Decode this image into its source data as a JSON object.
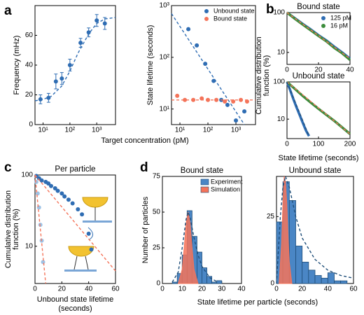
{
  "panels": [
    {
      "label": "a",
      "xlabel": "Target concentration (pM)"
    },
    {
      "label": "b",
      "ylabel": [
        "Cumulative distribution",
        "function (%)"
      ],
      "xlabel": "State lifetime (seconds)"
    },
    {
      "label": "c"
    },
    {
      "label": "d",
      "xlabel": "State lifetime per particle (seconds)"
    }
  ],
  "chart_data": [
    {
      "type": "scatter",
      "xscale": "log",
      "xlim": [
        5,
        5000
      ],
      "xticks": [
        {
          "value": 10,
          "label": "10¹"
        },
        {
          "value": 100,
          "label": "10²"
        },
        {
          "value": 1000,
          "label": "10³"
        }
      ],
      "ylim": [
        0,
        80
      ],
      "yticks": [
        0,
        20,
        40,
        60
      ],
      "ylabel": "Frequency (mHz)",
      "series": [
        {
          "color": "#2f6db3",
          "x": [
            8,
            16,
            30,
            50,
            100,
            250,
            500,
            1000,
            2000
          ],
          "values": [
            17,
            18,
            29,
            31,
            40,
            55,
            62,
            70,
            68
          ],
          "errors": [
            3,
            3,
            5,
            4,
            4,
            3,
            3,
            4,
            4
          ]
        }
      ],
      "fits": [
        {
          "color": "#2f6db3",
          "x": [
            5,
            10,
            20,
            50,
            100,
            200,
            500,
            1000,
            2000,
            5000
          ],
          "values": [
            16,
            17,
            19,
            26,
            36,
            48,
            61,
            68,
            71,
            72
          ]
        }
      ]
    },
    {
      "type": "scatter",
      "xscale": "log",
      "yscale": "log",
      "xlim": [
        5,
        5000
      ],
      "xticks": [
        {
          "value": 10,
          "label": "10¹"
        },
        {
          "value": 100,
          "label": "10²"
        },
        {
          "value": 1000,
          "label": "10³"
        }
      ],
      "ylim": [
        5,
        1000
      ],
      "yticks": [
        {
          "value": 10,
          "label": "10¹"
        },
        {
          "value": 100,
          "label": "10²"
        },
        {
          "value": 1000,
          "label": "10³"
        }
      ],
      "ylabel": "State lifetime (seconds)",
      "legend": "upper right",
      "series": [
        {
          "name": "Unbound state",
          "color": "#2f6db3",
          "x": [
            20,
            40,
            80,
            160,
            300,
            500,
            1000,
            2000
          ],
          "values": [
            350,
            170,
            75,
            35,
            15,
            12,
            6,
            9
          ]
        },
        {
          "name": "Bound state",
          "color": "#f4745a",
          "x": [
            8,
            15,
            30,
            60,
            100,
            200,
            400,
            800,
            1500,
            2500
          ],
          "values": [
            18,
            15,
            15,
            16,
            15,
            15,
            14,
            14,
            15,
            14
          ]
        }
      ],
      "fits": [
        {
          "color": "#2f6db3",
          "x": [
            5,
            2000
          ],
          "values": [
            700,
            5
          ]
        },
        {
          "color": "#f4745a",
          "x": [
            5,
            5000
          ],
          "values": [
            15,
            15
          ]
        }
      ]
    },
    {
      "type": "line",
      "yscale": "log",
      "title": "Bound state",
      "xlim": [
        0,
        40
      ],
      "xticks": [
        0,
        20,
        40
      ],
      "ylim": [
        5,
        100
      ],
      "yticks": [
        10,
        100
      ],
      "legend": "upper right",
      "series": [
        {
          "name": "125 pM",
          "color": "#2f6db3",
          "x": [
            0,
            5,
            10,
            15,
            20,
            25,
            30,
            35,
            40
          ],
          "values": [
            100,
            72,
            52,
            38,
            27,
            20,
            14,
            10,
            7
          ]
        },
        {
          "name": "16 pM",
          "color": "#3c8c3c",
          "x": [
            0,
            5,
            10,
            15,
            20,
            25,
            30,
            35,
            40
          ],
          "values": [
            100,
            70,
            50,
            36,
            26,
            19,
            13,
            9.5,
            6.5
          ]
        }
      ],
      "fits": [
        {
          "color": "#f4745a",
          "x": [
            0,
            40
          ],
          "values": [
            100,
            7
          ]
        }
      ]
    },
    {
      "type": "line",
      "yscale": "log",
      "title": "Unbound state",
      "xlim": [
        0,
        200
      ],
      "xticks": [
        0,
        100,
        200
      ],
      "ylim": [
        3,
        100
      ],
      "yticks": [
        10,
        100
      ],
      "series": [
        {
          "color": "#2f6db3",
          "x": [
            0,
            10,
            20,
            30,
            40,
            50,
            60,
            70
          ],
          "values": [
            100,
            60,
            35,
            21,
            13,
            8,
            5,
            3.5
          ]
        },
        {
          "color": "#3c8c3c",
          "x": [
            0,
            25,
            50,
            75,
            100,
            125,
            150,
            175,
            200
          ],
          "values": [
            100,
            65,
            42,
            28,
            19,
            13,
            9,
            6,
            4
          ]
        }
      ],
      "fits": [
        {
          "color": "#f4745a",
          "x": [
            0,
            200
          ],
          "values": [
            100,
            4
          ]
        },
        {
          "color": "#1f4e79",
          "x": [
            0,
            70
          ],
          "values": [
            100,
            3.5
          ]
        }
      ]
    },
    {
      "type": "scatter",
      "yscale": "log",
      "title": "Per particle",
      "xlim": [
        0,
        60
      ],
      "xticks": [
        0,
        20,
        40,
        60
      ],
      "ylim": [
        3,
        100
      ],
      "yticks": [
        10,
        100
      ],
      "ylabel": [
        "Cumulative distribution",
        "function (%)"
      ],
      "xlabel": [
        "Unbound state lifetime",
        "(seconds)"
      ],
      "series": [
        {
          "color": "#2f6db3",
          "x": [
            1,
            3,
            5,
            8,
            10,
            12,
            15,
            17,
            20,
            22,
            25,
            28,
            32,
            35,
            40,
            42
          ],
          "values": [
            97,
            90,
            84,
            80,
            76,
            70,
            65,
            60,
            55,
            50,
            45,
            40,
            33,
            28,
            15,
            9
          ]
        },
        {
          "color": "#9ec3e6",
          "x": [
            1,
            2,
            3,
            4,
            5,
            6
          ],
          "values": [
            80,
            55,
            35,
            20,
            12,
            6
          ]
        }
      ],
      "fits": [
        {
          "color": "#f4745a",
          "x": [
            0,
            60
          ],
          "values": [
            100,
            4.5
          ]
        },
        {
          "color": "#f4745a",
          "x": [
            0,
            8
          ],
          "values": [
            100,
            3
          ]
        }
      ]
    },
    {
      "type": "histogram",
      "title": "Bound state",
      "xlim": [
        0,
        40
      ],
      "xticks": [
        0,
        10,
        20,
        30,
        40
      ],
      "ylim": [
        0,
        75
      ],
      "yticks": [
        0,
        25,
        50,
        75
      ],
      "ylabel": "Number of particles",
      "legend": "upper right",
      "bins": [
        5,
        7.5,
        10,
        12.5,
        15,
        17.5,
        20,
        22.5,
        25,
        27.5,
        30
      ],
      "experiment": {
        "name": "Experiment",
        "color": "#4a86c5",
        "counts": [
          1,
          7,
          20,
          51,
          33,
          22,
          11,
          5,
          1,
          2
        ]
      },
      "simulation": {
        "name": "Simulation",
        "color": "#f4745a",
        "x": [
          8,
          10,
          11,
          12,
          13,
          14,
          15,
          16,
          18
        ],
        "values": [
          0,
          10,
          25,
          42,
          50,
          42,
          25,
          10,
          0
        ]
      },
      "fits": [
        {
          "color": "#1f4e79",
          "x": [
            5,
            8,
            10,
            12,
            13,
            14,
            16,
            18,
            20,
            24,
            28
          ],
          "values": [
            1,
            8,
            25,
            45,
            50,
            46,
            32,
            20,
            12,
            4,
            1
          ]
        }
      ]
    },
    {
      "type": "histogram",
      "title": "Unbound state",
      "xlim": [
        0,
        60
      ],
      "xticks": [
        0,
        20,
        40,
        60
      ],
      "ylim": [
        0,
        40
      ],
      "yticks": [
        0,
        25
      ],
      "bins": [
        0,
        5,
        10,
        15,
        20,
        25,
        30,
        35,
        40,
        45,
        50,
        55
      ],
      "experiment": {
        "color": "#4a86c5",
        "counts": [
          23,
          38,
          31,
          14,
          8,
          5,
          3,
          2,
          4,
          1,
          1
        ]
      },
      "simulation": {
        "color": "#f4745a",
        "x": [
          2,
          4,
          5,
          6,
          7,
          8,
          9,
          10,
          12
        ],
        "values": [
          0,
          15,
          30,
          40,
          38,
          30,
          18,
          8,
          0
        ]
      },
      "fits": [
        {
          "color": "#1f4e79",
          "x": [
            0,
            3,
            5,
            7,
            10,
            15,
            20,
            30,
            40,
            50,
            60
          ],
          "values": [
            0,
            25,
            36,
            40,
            36,
            25,
            17,
            9,
            5,
            3,
            2
          ]
        }
      ]
    }
  ]
}
